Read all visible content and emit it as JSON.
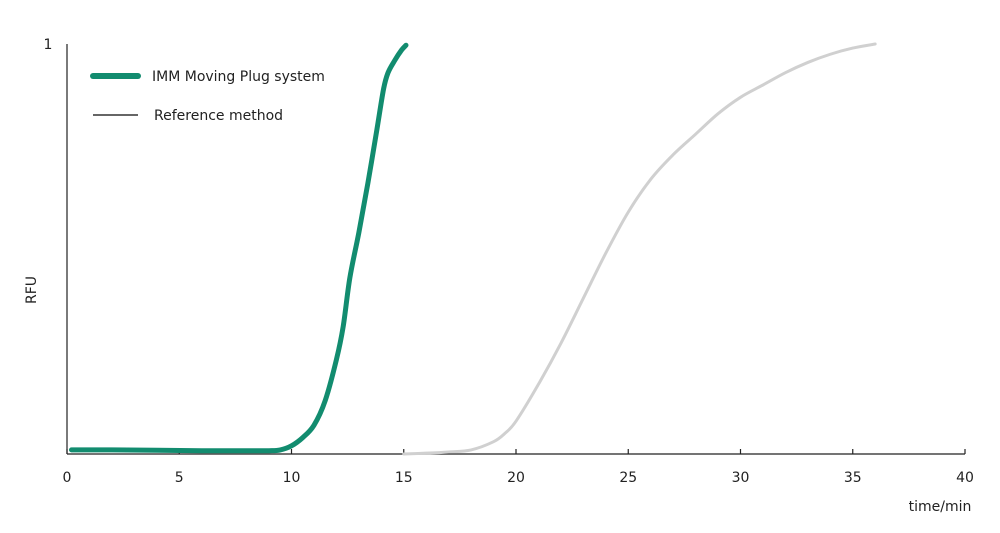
{
  "chart_data": {
    "type": "line",
    "title": "",
    "xlabel": "time/min",
    "ylabel": "RFU",
    "xlim": [
      0,
      40
    ],
    "ylim": [
      0,
      1
    ],
    "x_ticks": [
      "0",
      "5",
      "10",
      "15",
      "20",
      "25",
      "30",
      "35",
      "40"
    ],
    "y_ticks": [
      "1"
    ],
    "grid": false,
    "legend_position": "top-left",
    "series": [
      {
        "name": "IMM Moving Plug system",
        "color": "#128c6f",
        "x": [
          0.2,
          2,
          4,
          6,
          8,
          9,
          9.5,
          10,
          10.5,
          11,
          11.5,
          12,
          12.3,
          12.6,
          13,
          13.4,
          13.8,
          14.1,
          14.3,
          14.6,
          14.9,
          15.1
        ],
        "y": [
          0.01,
          0.01,
          0.009,
          0.008,
          0.008,
          0.008,
          0.01,
          0.02,
          0.04,
          0.07,
          0.13,
          0.23,
          0.31,
          0.43,
          0.54,
          0.66,
          0.79,
          0.89,
          0.93,
          0.96,
          0.985,
          0.997
        ]
      },
      {
        "name": "Reference method",
        "color": "#d0d0d0",
        "x": [
          15,
          16,
          17,
          18,
          19,
          19.5,
          20,
          21,
          22,
          23,
          24,
          25,
          26,
          27,
          28,
          29,
          30,
          31,
          32,
          33,
          34,
          35,
          36
        ],
        "y": [
          0.0,
          0.002,
          0.005,
          0.01,
          0.03,
          0.05,
          0.08,
          0.17,
          0.27,
          0.38,
          0.49,
          0.59,
          0.67,
          0.73,
          0.78,
          0.83,
          0.87,
          0.9,
          0.93,
          0.955,
          0.975,
          0.99,
          1.0
        ]
      }
    ]
  }
}
